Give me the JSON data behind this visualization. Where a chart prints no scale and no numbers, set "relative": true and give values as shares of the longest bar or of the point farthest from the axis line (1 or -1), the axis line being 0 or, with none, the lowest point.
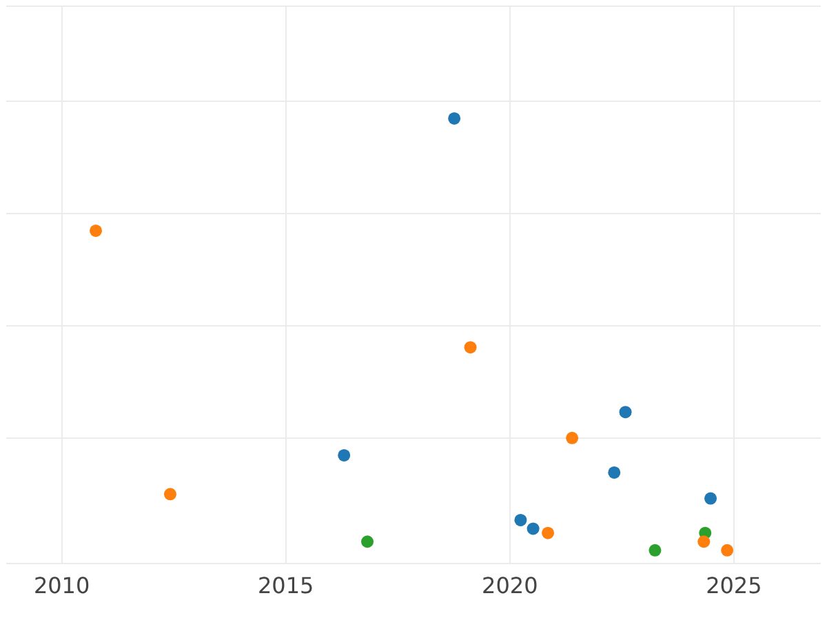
{
  "chart_data": {
    "type": "scatter",
    "relative": true,
    "grid": true,
    "legend": false,
    "marker": "circle",
    "xlim": [
      2008.76,
      2026.94
    ],
    "xticks": [
      2010,
      2015,
      2020,
      2025
    ],
    "series": [
      {
        "color": "#1f77b4",
        "x": [
          2018.76,
          2016.3,
          2020.24,
          2020.52,
          2022.33,
          2022.58,
          2024.48
        ],
        "values": [
          1.0,
          0.22,
          0.07,
          0.05,
          0.18,
          0.32,
          0.12
        ]
      },
      {
        "color": "#ff7f0e",
        "x": [
          2010.76,
          2012.42,
          2019.12,
          2021.39,
          2020.85,
          2024.33,
          2024.85
        ],
        "values": [
          0.74,
          0.13,
          0.47,
          0.26,
          0.04,
          0.02,
          0.0
        ]
      },
      {
        "color": "#2ca02c",
        "x": [
          2016.82,
          2023.24,
          2024.36
        ],
        "values": [
          0.02,
          0.0,
          0.04
        ]
      }
    ]
  }
}
